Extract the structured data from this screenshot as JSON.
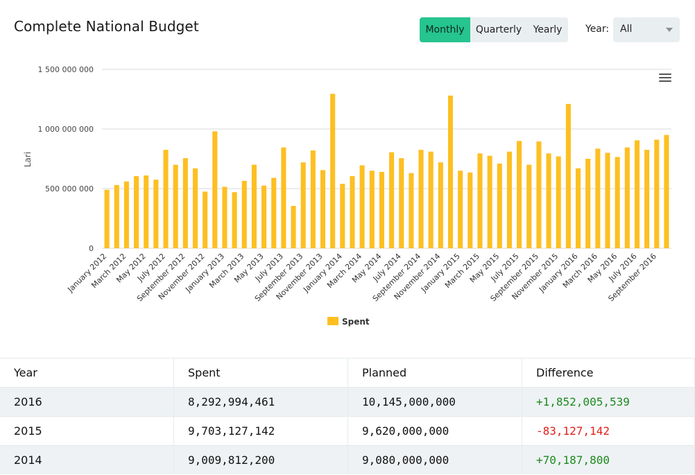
{
  "header": {
    "title": "Complete National Budget",
    "periods": [
      "Monthly",
      "Quarterly",
      "Yearly"
    ],
    "active_period": "Monthly",
    "year_label": "Year:",
    "year_value": "All"
  },
  "colors": {
    "bar": "#fdbf22",
    "accent": "#26c48e",
    "positive": "#1e8a1e",
    "negative": "#e0201b"
  },
  "chart_data": {
    "type": "bar",
    "ylabel": "Lari",
    "ylim": [
      0,
      1500000000
    ],
    "yticks": [
      0,
      500000000,
      1000000000,
      1500000000
    ],
    "ytick_labels": [
      "0",
      "500 000 000",
      "1 000 000 000",
      "1 500 000 000"
    ],
    "grid": true,
    "legend_position": "bottom-center",
    "categories": [
      "January 2012",
      "February 2012",
      "March 2012",
      "April 2012",
      "May 2012",
      "June 2012",
      "July 2012",
      "August 2012",
      "September 2012",
      "October 2012",
      "November 2012",
      "December 2012",
      "January 2013",
      "February 2013",
      "March 2013",
      "April 2013",
      "May 2013",
      "June 2013",
      "July 2013",
      "August 2013",
      "September 2013",
      "October 2013",
      "November 2013",
      "December 2013",
      "January 2014",
      "February 2014",
      "March 2014",
      "April 2014",
      "May 2014",
      "June 2014",
      "July 2014",
      "August 2014",
      "September 2014",
      "October 2014",
      "November 2014",
      "December 2014",
      "January 2015",
      "February 2015",
      "March 2015",
      "April 2015",
      "May 2015",
      "June 2015",
      "July 2015",
      "August 2015",
      "September 2015",
      "October 2015",
      "November 2015",
      "December 2015",
      "January 2016",
      "February 2016",
      "March 2016",
      "April 2016",
      "May 2016",
      "June 2016",
      "July 2016",
      "August 2016",
      "September 2016",
      "October 2016"
    ],
    "tick_labels": [
      "January 2012",
      "March 2012",
      "May 2012",
      "July 2012",
      "September 2012",
      "November 2012",
      "January 2013",
      "March 2013",
      "May 2013",
      "July 2013",
      "September 2013",
      "November 2013",
      "January 2014",
      "March 2014",
      "May 2014",
      "July 2014",
      "September 2014",
      "November 2014",
      "January 2015",
      "March 2015",
      "May 2015",
      "July 2015",
      "September 2015",
      "November 2015",
      "January 2016",
      "March 2016",
      "May 2016",
      "July 2016",
      "September 2016"
    ],
    "series": [
      {
        "name": "Spent",
        "values": [
          490000000,
          530000000,
          560000000,
          605000000,
          610000000,
          575000000,
          825000000,
          700000000,
          755000000,
          670000000,
          475000000,
          980000000,
          515000000,
          470000000,
          565000000,
          700000000,
          525000000,
          590000000,
          845000000,
          355000000,
          720000000,
          820000000,
          655000000,
          1295000000,
          540000000,
          605000000,
          695000000,
          650000000,
          640000000,
          805000000,
          755000000,
          630000000,
          825000000,
          810000000,
          720000000,
          1280000000,
          650000000,
          635000000,
          795000000,
          775000000,
          710000000,
          810000000,
          900000000,
          700000000,
          895000000,
          795000000,
          770000000,
          1210000000,
          670000000,
          750000000,
          835000000,
          800000000,
          765000000,
          845000000,
          905000000,
          825000000,
          910000000,
          950000000
        ]
      }
    ]
  },
  "table": {
    "headers": [
      "Year",
      "Spent",
      "Planned",
      "Difference"
    ],
    "rows": [
      {
        "year": "2016",
        "spent": "8,292,994,461",
        "planned": "10,145,000,000",
        "difference": "+1,852,005,539",
        "sign": "pos"
      },
      {
        "year": "2015",
        "spent": "9,703,127,142",
        "planned": "9,620,000,000",
        "difference": "-83,127,142",
        "sign": "neg"
      },
      {
        "year": "2014",
        "spent": "9,009,812,200",
        "planned": "9,080,000,000",
        "difference": "+70,187,800",
        "sign": "pos"
      }
    ]
  }
}
